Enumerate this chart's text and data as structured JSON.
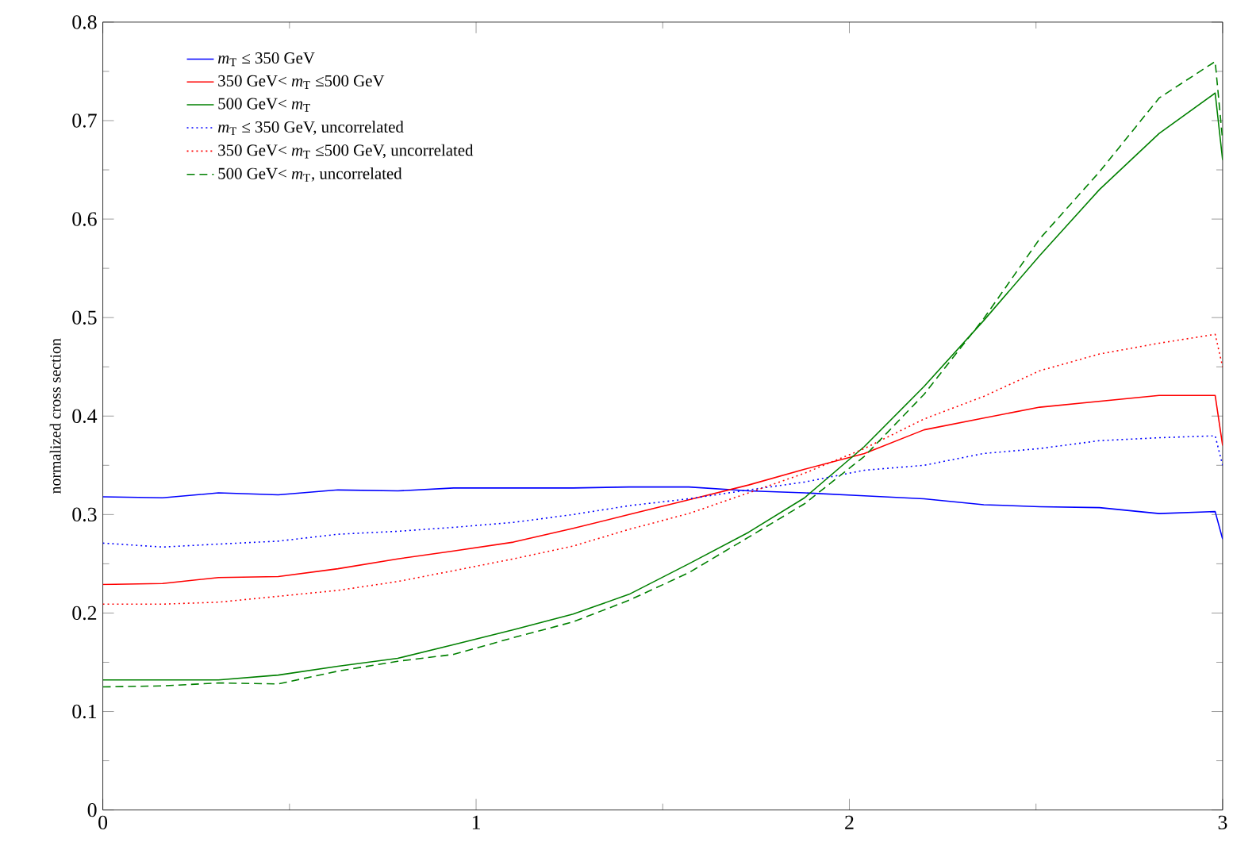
{
  "chart_data": {
    "type": "line",
    "ylabel": "normalized cross section",
    "x": [
      0,
      0.16,
      0.31,
      0.47,
      0.63,
      0.79,
      0.94,
      1.1,
      1.26,
      1.41,
      1.57,
      1.73,
      1.88,
      2.04,
      2.2,
      2.36,
      2.51,
      2.67,
      2.83,
      2.98,
      3.0
    ],
    "xlim": [
      0,
      3
    ],
    "ylim": [
      0,
      0.8
    ],
    "xticks": [
      0,
      1,
      2,
      3
    ],
    "yticks": [
      0,
      0.1,
      0.2,
      0.3,
      0.4,
      0.5,
      0.6,
      0.7,
      0.8
    ],
    "grid": false,
    "legend": "top left",
    "marker": "none",
    "series": [
      {
        "name": "*m*$_{T}$ ≤ 350 GeV",
        "color": "#0000ff",
        "line_style": "solid",
        "values": [
          0.318,
          0.317,
          0.322,
          0.32,
          0.325,
          0.324,
          0.327,
          0.327,
          0.327,
          0.328,
          0.328,
          0.324,
          0.322,
          0.319,
          0.316,
          0.31,
          0.308,
          0.307,
          0.301,
          0.303,
          0.275
        ]
      },
      {
        "name": "350 GeV< *m*$_{T}$ ≤500 GeV",
        "color": "#ff0000",
        "line_style": "solid",
        "values": [
          0.229,
          0.23,
          0.236,
          0.237,
          0.245,
          0.255,
          0.263,
          0.272,
          0.286,
          0.3,
          0.315,
          0.33,
          0.346,
          0.362,
          0.386,
          0.398,
          0.409,
          0.415,
          0.421,
          0.421,
          0.37
        ]
      },
      {
        "name": "500 GeV< *m*$_{T}$",
        "color": "#008000",
        "line_style": "solid",
        "values": [
          0.132,
          0.132,
          0.132,
          0.137,
          0.146,
          0.154,
          0.168,
          0.183,
          0.199,
          0.219,
          0.25,
          0.282,
          0.317,
          0.369,
          0.43,
          0.497,
          0.563,
          0.63,
          0.687,
          0.728,
          0.66
        ]
      },
      {
        "name": "*m*$_{T}$ ≤ 350 GeV, uncorrelated",
        "color": "#0000ff",
        "line_style": "dotted",
        "values": [
          0.271,
          0.267,
          0.27,
          0.273,
          0.28,
          0.283,
          0.287,
          0.292,
          0.3,
          0.309,
          0.316,
          0.325,
          0.333,
          0.345,
          0.35,
          0.362,
          0.367,
          0.375,
          0.378,
          0.38,
          0.35
        ]
      },
      {
        "name": "350 GeV< *m*$_{T}$ ≤500 GeV, uncorrelated",
        "color": "#ff0000",
        "line_style": "dotted",
        "values": [
          0.209,
          0.209,
          0.211,
          0.217,
          0.223,
          0.232,
          0.243,
          0.255,
          0.268,
          0.285,
          0.301,
          0.322,
          0.342,
          0.367,
          0.397,
          0.42,
          0.446,
          0.463,
          0.474,
          0.483,
          0.45
        ]
      },
      {
        "name": "500 GeV< *m*$_{T}$, uncorrelated",
        "color": "#008000",
        "line_style": "dashed",
        "values": [
          0.125,
          0.126,
          0.129,
          0.128,
          0.141,
          0.151,
          0.158,
          0.175,
          0.191,
          0.213,
          0.241,
          0.277,
          0.311,
          0.359,
          0.422,
          0.499,
          0.58,
          0.648,
          0.723,
          0.76,
          0.68
        ]
      }
    ]
  }
}
